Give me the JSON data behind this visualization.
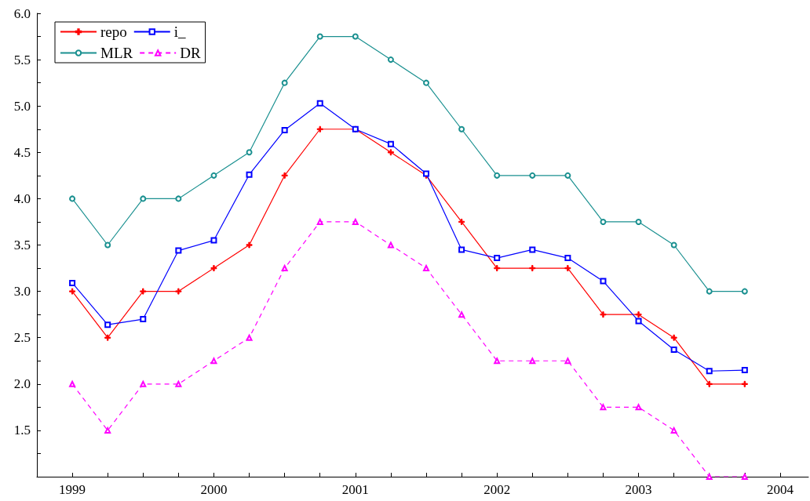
{
  "chart_data": {
    "type": "line",
    "x": [
      1999,
      1999.25,
      1999.5,
      1999.75,
      2000,
      2000.25,
      2000.5,
      2000.75,
      2001,
      2001.25,
      2001.5,
      2001.75,
      2002,
      2002.25,
      2002.5,
      2002.75,
      2003,
      2003.25,
      2003.5,
      2003.75
    ],
    "series": [
      {
        "name": "repo",
        "color": "#ff0000",
        "marker": "cross",
        "line_style": "solid",
        "values": [
          3.0,
          2.5,
          3.0,
          3.0,
          3.25,
          3.5,
          4.25,
          4.75,
          4.75,
          4.5,
          4.25,
          3.75,
          3.25,
          3.25,
          3.25,
          2.75,
          2.75,
          2.5,
          2.0,
          2.0
        ]
      },
      {
        "name": "i_",
        "color": "#0000ff",
        "marker": "square",
        "line_style": "solid",
        "values": [
          3.09,
          2.64,
          2.7,
          3.44,
          3.55,
          4.26,
          4.74,
          5.03,
          4.75,
          4.59,
          4.27,
          3.45,
          3.36,
          3.45,
          3.36,
          3.11,
          2.68,
          2.37,
          2.14,
          2.15
        ]
      },
      {
        "name": "MLR",
        "color": "#1a9090",
        "marker": "circle",
        "line_style": "solid",
        "values": [
          4.0,
          3.5,
          4.0,
          4.0,
          4.25,
          4.5,
          5.25,
          5.75,
          5.75,
          5.5,
          5.25,
          4.75,
          4.25,
          4.25,
          4.25,
          3.75,
          3.75,
          3.5,
          3.0,
          3.0
        ]
      },
      {
        "name": "DR",
        "color": "#ff00ff",
        "marker": "triangle",
        "line_style": "dashed",
        "values": [
          2.0,
          1.5,
          2.0,
          2.0,
          2.25,
          2.5,
          3.25,
          3.75,
          3.75,
          3.5,
          3.25,
          2.75,
          2.25,
          2.25,
          2.25,
          1.75,
          1.75,
          1.5,
          1.0,
          1.0
        ]
      }
    ],
    "xlim": [
      1998.75,
      2004.2
    ],
    "xticks": [
      1999,
      {
        "value": 1999.25,
        "label": null
      },
      {
        "value": 1999.5,
        "label": null
      },
      {
        "value": 1999.75,
        "label": null
      },
      2000,
      {
        "value": 2000.25,
        "label": null
      },
      {
        "value": 2000.5,
        "label": null
      },
      {
        "value": 2000.75,
        "label": null
      },
      2001,
      {
        "value": 2001.25,
        "label": null
      },
      {
        "value": 2001.5,
        "label": null
      },
      {
        "value": 2001.75,
        "label": null
      },
      2002,
      {
        "value": 2002.25,
        "label": null
      },
      {
        "value": 2002.5,
        "label": null
      },
      {
        "value": 2002.75,
        "label": null
      },
      2003,
      {
        "value": 2003.25,
        "label": null
      },
      {
        "value": 2003.5,
        "label": null
      },
      {
        "value": 2003.75,
        "label": null
      },
      2004
    ],
    "ylim": [
      1.0,
      6.0
    ],
    "yticks": [
      {
        "value": 1.0,
        "label": null
      },
      {
        "value": 1.25,
        "label": null
      },
      {
        "value": 1.5,
        "label": "1.5"
      },
      {
        "value": 1.75,
        "label": null
      },
      {
        "value": 2.0,
        "label": "2.0"
      },
      {
        "value": 2.25,
        "label": null
      },
      {
        "value": 2.5,
        "label": "2.5"
      },
      {
        "value": 2.75,
        "label": null
      },
      {
        "value": 3.0,
        "label": "3.0"
      },
      {
        "value": 3.25,
        "label": null
      },
      {
        "value": 3.5,
        "label": "3.5"
      },
      {
        "value": 3.75,
        "label": null
      },
      {
        "value": 4.0,
        "label": "4.0"
      },
      {
        "value": 4.25,
        "label": null
      },
      {
        "value": 4.5,
        "label": "4.5"
      },
      {
        "value": 4.75,
        "label": null
      },
      {
        "value": 5.0,
        "label": "5.0"
      },
      {
        "value": 5.25,
        "label": null
      },
      {
        "value": 5.5,
        "label": "5.5"
      },
      {
        "value": 5.75,
        "label": null
      },
      {
        "value": 6.0,
        "label": "6.0"
      }
    ],
    "grid": false,
    "legend": "top left"
  }
}
